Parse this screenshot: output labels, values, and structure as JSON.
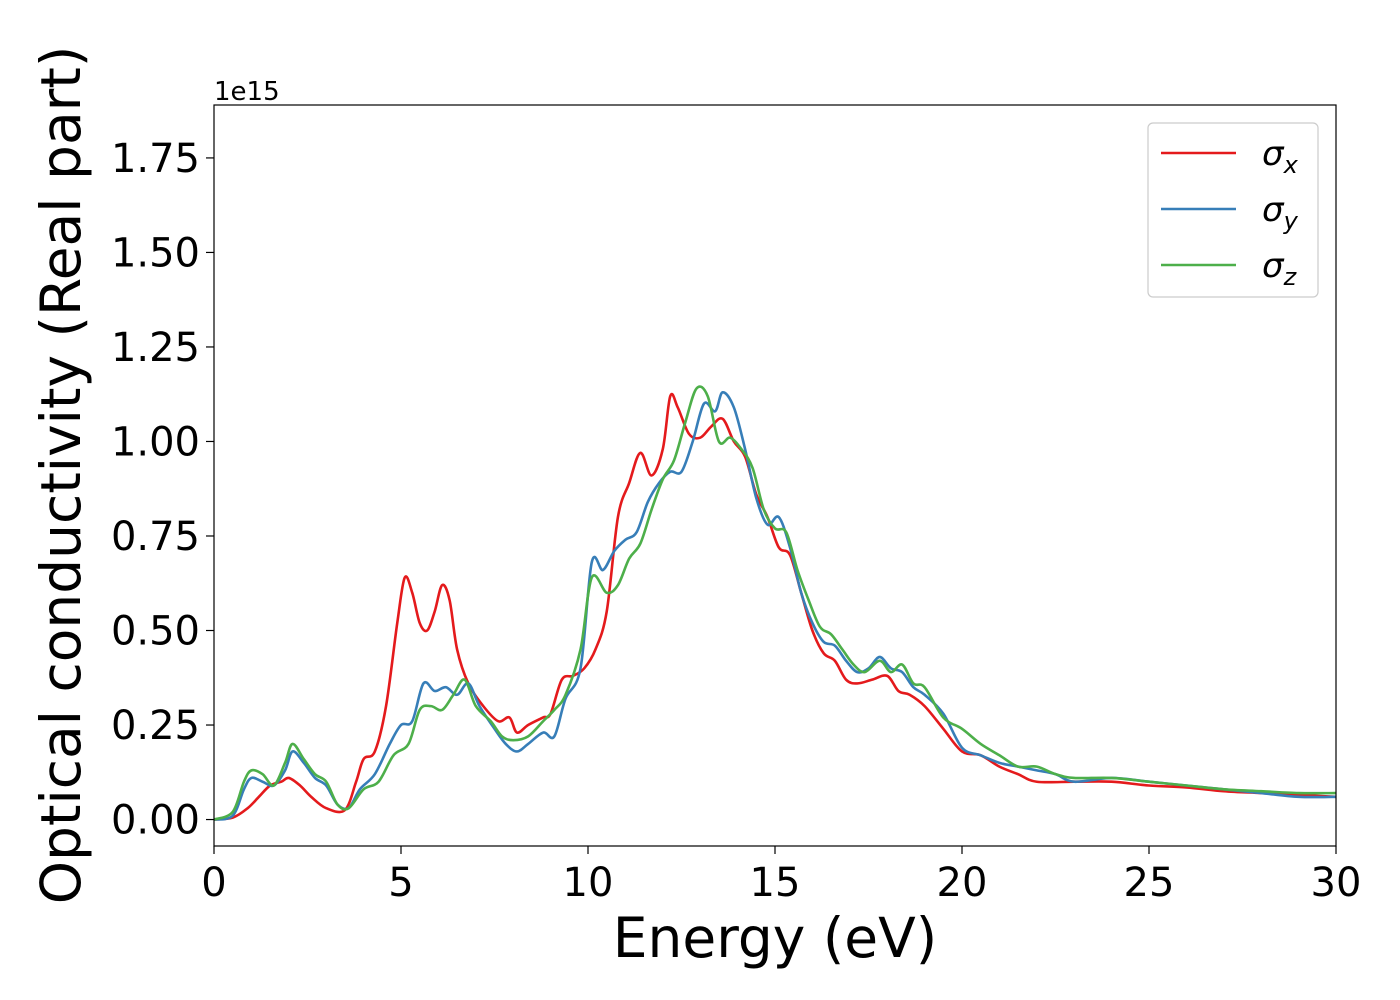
{
  "chart_data": {
    "type": "line",
    "title": "",
    "xlabel": "Energy (eV)",
    "ylabel": "Optical conductivity (Real part)",
    "y_offset_label": "1e15",
    "xlim": [
      0,
      30
    ],
    "ylim": [
      -0.07,
      1.89
    ],
    "grid": false,
    "legend_position": "top-right",
    "x_ticks": [
      0,
      5,
      10,
      15,
      20,
      25,
      30
    ],
    "x_tick_labels": [
      "0",
      "5",
      "10",
      "15",
      "20",
      "25",
      "30"
    ],
    "y_ticks": [
      0.0,
      0.25,
      0.5,
      0.75,
      1.0,
      1.25,
      1.5,
      1.75
    ],
    "y_tick_labels": [
      "0.00",
      "0.25",
      "0.50",
      "0.75",
      "1.00",
      "1.25",
      "1.50",
      "1.75"
    ],
    "series": [
      {
        "name": "σx",
        "base": "σ",
        "sub": "x",
        "color": "#e41a1c",
        "points": [
          [
            0,
            0
          ],
          [
            0.5,
            0.005
          ],
          [
            0.9,
            0.03
          ],
          [
            1.2,
            0.06
          ],
          [
            1.5,
            0.09
          ],
          [
            1.8,
            0.1
          ],
          [
            2.0,
            0.11
          ],
          [
            2.3,
            0.09
          ],
          [
            2.6,
            0.06
          ],
          [
            3.0,
            0.03
          ],
          [
            3.5,
            0.025
          ],
          [
            3.8,
            0.1
          ],
          [
            4.0,
            0.16
          ],
          [
            4.3,
            0.18
          ],
          [
            4.6,
            0.3
          ],
          [
            4.9,
            0.52
          ],
          [
            5.1,
            0.64
          ],
          [
            5.3,
            0.6
          ],
          [
            5.5,
            0.52
          ],
          [
            5.7,
            0.5
          ],
          [
            5.9,
            0.55
          ],
          [
            6.1,
            0.62
          ],
          [
            6.3,
            0.58
          ],
          [
            6.5,
            0.45
          ],
          [
            6.8,
            0.36
          ],
          [
            7.2,
            0.3
          ],
          [
            7.6,
            0.26
          ],
          [
            7.9,
            0.27
          ],
          [
            8.1,
            0.23
          ],
          [
            8.4,
            0.25
          ],
          [
            8.8,
            0.27
          ],
          [
            9.0,
            0.28
          ],
          [
            9.3,
            0.37
          ],
          [
            9.6,
            0.38
          ],
          [
            9.9,
            0.4
          ],
          [
            10.2,
            0.45
          ],
          [
            10.5,
            0.55
          ],
          [
            10.8,
            0.8
          ],
          [
            11.1,
            0.89
          ],
          [
            11.4,
            0.97
          ],
          [
            11.7,
            0.91
          ],
          [
            12.0,
            0.98
          ],
          [
            12.2,
            1.12
          ],
          [
            12.4,
            1.09
          ],
          [
            12.7,
            1.02
          ],
          [
            13.0,
            1.01
          ],
          [
            13.3,
            1.04
          ],
          [
            13.6,
            1.06
          ],
          [
            13.9,
            1.0
          ],
          [
            14.2,
            0.96
          ],
          [
            14.5,
            0.86
          ],
          [
            14.8,
            0.8
          ],
          [
            15.1,
            0.72
          ],
          [
            15.4,
            0.7
          ],
          [
            15.7,
            0.6
          ],
          [
            16.0,
            0.5
          ],
          [
            16.3,
            0.44
          ],
          [
            16.6,
            0.42
          ],
          [
            16.9,
            0.37
          ],
          [
            17.2,
            0.36
          ],
          [
            17.6,
            0.37
          ],
          [
            18.0,
            0.38
          ],
          [
            18.3,
            0.34
          ],
          [
            18.6,
            0.33
          ],
          [
            19.0,
            0.3
          ],
          [
            19.5,
            0.24
          ],
          [
            20.0,
            0.18
          ],
          [
            20.5,
            0.17
          ],
          [
            21.0,
            0.14
          ],
          [
            21.5,
            0.12
          ],
          [
            22.0,
            0.1
          ],
          [
            23.0,
            0.1
          ],
          [
            24.0,
            0.1
          ],
          [
            25.0,
            0.09
          ],
          [
            26.0,
            0.085
          ],
          [
            27.0,
            0.075
          ],
          [
            28.0,
            0.07
          ],
          [
            29.0,
            0.065
          ],
          [
            30.0,
            0.06
          ]
        ]
      },
      {
        "name": "σy",
        "base": "σ",
        "sub": "y",
        "color": "#377eb8",
        "points": [
          [
            0,
            0
          ],
          [
            0.5,
            0.01
          ],
          [
            0.8,
            0.08
          ],
          [
            1.0,
            0.11
          ],
          [
            1.3,
            0.1
          ],
          [
            1.6,
            0.09
          ],
          [
            1.9,
            0.13
          ],
          [
            2.1,
            0.18
          ],
          [
            2.4,
            0.15
          ],
          [
            2.7,
            0.11
          ],
          [
            3.0,
            0.09
          ],
          [
            3.3,
            0.04
          ],
          [
            3.6,
            0.03
          ],
          [
            3.9,
            0.08
          ],
          [
            4.3,
            0.12
          ],
          [
            4.7,
            0.2
          ],
          [
            5.0,
            0.25
          ],
          [
            5.3,
            0.26
          ],
          [
            5.6,
            0.36
          ],
          [
            5.9,
            0.34
          ],
          [
            6.2,
            0.35
          ],
          [
            6.5,
            0.33
          ],
          [
            6.8,
            0.36
          ],
          [
            7.1,
            0.3
          ],
          [
            7.5,
            0.24
          ],
          [
            7.8,
            0.2
          ],
          [
            8.1,
            0.18
          ],
          [
            8.4,
            0.2
          ],
          [
            8.8,
            0.23
          ],
          [
            9.1,
            0.22
          ],
          [
            9.4,
            0.32
          ],
          [
            9.8,
            0.4
          ],
          [
            10.1,
            0.68
          ],
          [
            10.4,
            0.66
          ],
          [
            10.7,
            0.71
          ],
          [
            11.0,
            0.74
          ],
          [
            11.3,
            0.76
          ],
          [
            11.6,
            0.84
          ],
          [
            11.9,
            0.89
          ],
          [
            12.2,
            0.92
          ],
          [
            12.5,
            0.92
          ],
          [
            12.8,
            1.0
          ],
          [
            13.1,
            1.1
          ],
          [
            13.4,
            1.08
          ],
          [
            13.6,
            1.13
          ],
          [
            13.9,
            1.09
          ],
          [
            14.2,
            0.98
          ],
          [
            14.5,
            0.85
          ],
          [
            14.8,
            0.78
          ],
          [
            15.1,
            0.8
          ],
          [
            15.4,
            0.72
          ],
          [
            15.7,
            0.6
          ],
          [
            16.0,
            0.52
          ],
          [
            16.3,
            0.47
          ],
          [
            16.6,
            0.46
          ],
          [
            16.9,
            0.42
          ],
          [
            17.2,
            0.39
          ],
          [
            17.5,
            0.4
          ],
          [
            17.8,
            0.43
          ],
          [
            18.1,
            0.4
          ],
          [
            18.4,
            0.39
          ],
          [
            18.7,
            0.35
          ],
          [
            19.0,
            0.33
          ],
          [
            19.5,
            0.28
          ],
          [
            20.0,
            0.19
          ],
          [
            20.5,
            0.17
          ],
          [
            21.0,
            0.15
          ],
          [
            21.5,
            0.14
          ],
          [
            22.0,
            0.13
          ],
          [
            22.5,
            0.12
          ],
          [
            23.0,
            0.1
          ],
          [
            24.0,
            0.11
          ],
          [
            25.0,
            0.1
          ],
          [
            26.0,
            0.09
          ],
          [
            27.0,
            0.08
          ],
          [
            28.0,
            0.07
          ],
          [
            29.0,
            0.06
          ],
          [
            30.0,
            0.06
          ]
        ]
      },
      {
        "name": "σz",
        "base": "σ",
        "sub": "z",
        "color": "#4daf4a",
        "points": [
          [
            0,
            0
          ],
          [
            0.5,
            0.02
          ],
          [
            0.8,
            0.1
          ],
          [
            1.0,
            0.13
          ],
          [
            1.3,
            0.12
          ],
          [
            1.6,
            0.09
          ],
          [
            1.9,
            0.15
          ],
          [
            2.1,
            0.2
          ],
          [
            2.4,
            0.16
          ],
          [
            2.7,
            0.12
          ],
          [
            3.0,
            0.1
          ],
          [
            3.3,
            0.04
          ],
          [
            3.6,
            0.03
          ],
          [
            4.0,
            0.08
          ],
          [
            4.4,
            0.1
          ],
          [
            4.8,
            0.17
          ],
          [
            5.2,
            0.2
          ],
          [
            5.5,
            0.29
          ],
          [
            5.8,
            0.3
          ],
          [
            6.1,
            0.29
          ],
          [
            6.4,
            0.33
          ],
          [
            6.7,
            0.37
          ],
          [
            7.0,
            0.3
          ],
          [
            7.4,
            0.26
          ],
          [
            7.7,
            0.22
          ],
          [
            8.0,
            0.21
          ],
          [
            8.4,
            0.22
          ],
          [
            8.8,
            0.26
          ],
          [
            9.1,
            0.29
          ],
          [
            9.4,
            0.33
          ],
          [
            9.8,
            0.45
          ],
          [
            10.1,
            0.64
          ],
          [
            10.5,
            0.6
          ],
          [
            10.8,
            0.62
          ],
          [
            11.1,
            0.69
          ],
          [
            11.4,
            0.73
          ],
          [
            11.7,
            0.82
          ],
          [
            12.0,
            0.9
          ],
          [
            12.3,
            0.95
          ],
          [
            12.6,
            1.05
          ],
          [
            12.9,
            1.14
          ],
          [
            13.2,
            1.12
          ],
          [
            13.5,
            1.0
          ],
          [
            13.8,
            1.01
          ],
          [
            14.1,
            0.98
          ],
          [
            14.4,
            0.93
          ],
          [
            14.7,
            0.82
          ],
          [
            15.0,
            0.77
          ],
          [
            15.3,
            0.76
          ],
          [
            15.6,
            0.66
          ],
          [
            15.9,
            0.58
          ],
          [
            16.2,
            0.51
          ],
          [
            16.5,
            0.49
          ],
          [
            16.8,
            0.45
          ],
          [
            17.1,
            0.41
          ],
          [
            17.4,
            0.39
          ],
          [
            17.8,
            0.42
          ],
          [
            18.1,
            0.39
          ],
          [
            18.4,
            0.41
          ],
          [
            18.7,
            0.36
          ],
          [
            19.0,
            0.35
          ],
          [
            19.5,
            0.27
          ],
          [
            20.0,
            0.24
          ],
          [
            20.5,
            0.2
          ],
          [
            21.0,
            0.17
          ],
          [
            21.5,
            0.14
          ],
          [
            22.0,
            0.14
          ],
          [
            22.5,
            0.12
          ],
          [
            23.0,
            0.11
          ],
          [
            24.0,
            0.11
          ],
          [
            25.0,
            0.1
          ],
          [
            26.0,
            0.09
          ],
          [
            27.0,
            0.08
          ],
          [
            28.0,
            0.075
          ],
          [
            29.0,
            0.07
          ],
          [
            30.0,
            0.07
          ]
        ]
      }
    ]
  }
}
